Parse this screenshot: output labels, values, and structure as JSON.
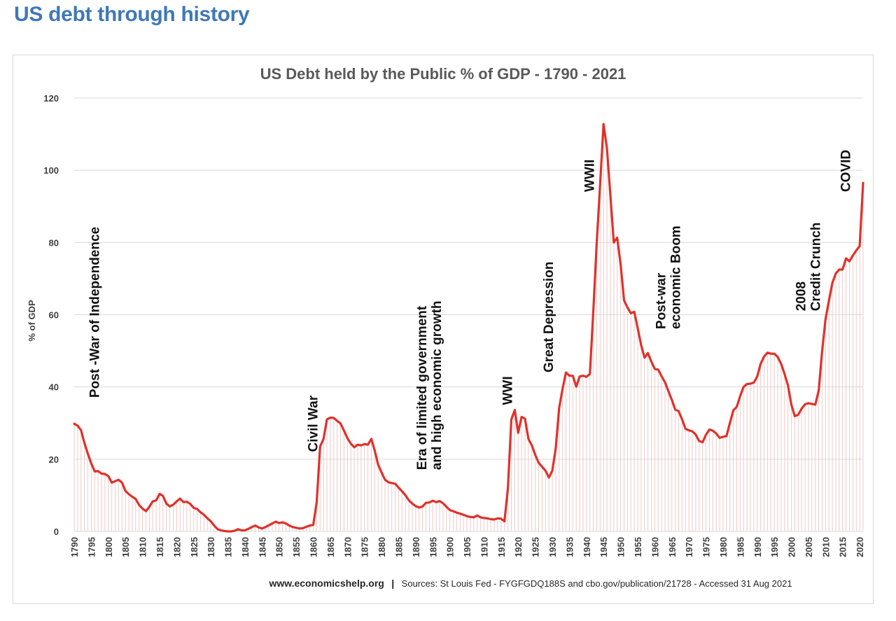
{
  "page": {
    "heading": "US debt through history"
  },
  "chart_data": {
    "type": "line",
    "title": "US Debt held by the Public % of GDP - 1790 - 2021",
    "ylabel": "% of GDP",
    "xlabel": "",
    "ylim": [
      0,
      120
    ],
    "yticks": [
      0,
      20,
      40,
      60,
      80,
      100,
      120
    ],
    "xlim": [
      1790,
      2021
    ],
    "xticks": [
      1790,
      1795,
      1800,
      1805,
      1810,
      1815,
      1820,
      1825,
      1830,
      1835,
      1840,
      1845,
      1850,
      1855,
      1860,
      1865,
      1870,
      1875,
      1880,
      1885,
      1890,
      1895,
      1900,
      1905,
      1910,
      1915,
      1920,
      1925,
      1930,
      1935,
      1940,
      1945,
      1950,
      1955,
      1960,
      1965,
      1970,
      1975,
      1980,
      1985,
      1990,
      1995,
      2000,
      2005,
      2010,
      2015,
      2020
    ],
    "grid": true,
    "series": [
      {
        "name": "Debt held by the public (% of GDP)",
        "color": "#e0312a",
        "points": [
          [
            1790,
            29.8
          ],
          [
            1791,
            29.3
          ],
          [
            1792,
            28.0
          ],
          [
            1793,
            24.5
          ],
          [
            1794,
            21.5
          ],
          [
            1795,
            18.8
          ],
          [
            1796,
            16.6
          ],
          [
            1797,
            16.7
          ],
          [
            1798,
            16.0
          ],
          [
            1799,
            15.9
          ],
          [
            1800,
            15.3
          ],
          [
            1801,
            13.5
          ],
          [
            1802,
            13.9
          ],
          [
            1803,
            14.3
          ],
          [
            1804,
            13.5
          ],
          [
            1805,
            11.2
          ],
          [
            1806,
            10.3
          ],
          [
            1807,
            9.6
          ],
          [
            1808,
            9.0
          ],
          [
            1809,
            7.3
          ],
          [
            1810,
            6.3
          ],
          [
            1811,
            5.6
          ],
          [
            1812,
            6.8
          ],
          [
            1813,
            8.3
          ],
          [
            1814,
            8.6
          ],
          [
            1815,
            10.4
          ],
          [
            1816,
            9.8
          ],
          [
            1817,
            7.7
          ],
          [
            1818,
            6.9
          ],
          [
            1819,
            7.4
          ],
          [
            1820,
            8.3
          ],
          [
            1821,
            9.1
          ],
          [
            1822,
            8.1
          ],
          [
            1823,
            8.2
          ],
          [
            1824,
            7.6
          ],
          [
            1825,
            6.5
          ],
          [
            1826,
            6.2
          ],
          [
            1827,
            5.3
          ],
          [
            1828,
            4.6
          ],
          [
            1829,
            3.6
          ],
          [
            1830,
            2.8
          ],
          [
            1831,
            1.6
          ],
          [
            1832,
            0.6
          ],
          [
            1833,
            0.3
          ],
          [
            1834,
            0.1
          ],
          [
            1835,
            0.0
          ],
          [
            1836,
            0.0
          ],
          [
            1837,
            0.2
          ],
          [
            1838,
            0.6
          ],
          [
            1839,
            0.3
          ],
          [
            1840,
            0.3
          ],
          [
            1841,
            0.7
          ],
          [
            1842,
            1.2
          ],
          [
            1843,
            1.6
          ],
          [
            1844,
            1.1
          ],
          [
            1845,
            0.8
          ],
          [
            1846,
            1.2
          ],
          [
            1847,
            1.7
          ],
          [
            1848,
            2.2
          ],
          [
            1849,
            2.7
          ],
          [
            1850,
            2.3
          ],
          [
            1851,
            2.5
          ],
          [
            1852,
            2.2
          ],
          [
            1853,
            1.6
          ],
          [
            1854,
            1.2
          ],
          [
            1855,
            1.0
          ],
          [
            1856,
            0.8
          ],
          [
            1857,
            0.9
          ],
          [
            1858,
            1.3
          ],
          [
            1859,
            1.6
          ],
          [
            1860,
            1.8
          ],
          [
            1861,
            8.0
          ],
          [
            1862,
            23.5
          ],
          [
            1863,
            25.6
          ],
          [
            1864,
            31.0
          ],
          [
            1865,
            31.5
          ],
          [
            1866,
            31.4
          ],
          [
            1867,
            30.6
          ],
          [
            1868,
            29.9
          ],
          [
            1869,
            27.9
          ],
          [
            1870,
            25.8
          ],
          [
            1871,
            24.3
          ],
          [
            1872,
            23.3
          ],
          [
            1873,
            24.0
          ],
          [
            1874,
            23.8
          ],
          [
            1875,
            24.2
          ],
          [
            1876,
            24.0
          ],
          [
            1877,
            25.6
          ],
          [
            1878,
            22.4
          ],
          [
            1879,
            18.5
          ],
          [
            1880,
            16.3
          ],
          [
            1881,
            14.3
          ],
          [
            1882,
            13.6
          ],
          [
            1883,
            13.4
          ],
          [
            1884,
            13.2
          ],
          [
            1885,
            12.1
          ],
          [
            1886,
            11.1
          ],
          [
            1887,
            10.0
          ],
          [
            1888,
            8.6
          ],
          [
            1889,
            7.7
          ],
          [
            1890,
            7.0
          ],
          [
            1891,
            6.6
          ],
          [
            1892,
            6.9
          ],
          [
            1893,
            7.9
          ],
          [
            1894,
            8.0
          ],
          [
            1895,
            8.5
          ],
          [
            1896,
            8.1
          ],
          [
            1897,
            8.4
          ],
          [
            1898,
            7.8
          ],
          [
            1899,
            6.8
          ],
          [
            1900,
            5.9
          ],
          [
            1901,
            5.6
          ],
          [
            1902,
            5.2
          ],
          [
            1903,
            4.9
          ],
          [
            1904,
            4.6
          ],
          [
            1905,
            4.2
          ],
          [
            1906,
            4.0
          ],
          [
            1907,
            3.9
          ],
          [
            1908,
            4.4
          ],
          [
            1909,
            3.9
          ],
          [
            1910,
            3.7
          ],
          [
            1911,
            3.6
          ],
          [
            1912,
            3.4
          ],
          [
            1913,
            3.3
          ],
          [
            1914,
            3.6
          ],
          [
            1915,
            3.5
          ],
          [
            1916,
            2.8
          ],
          [
            1917,
            12.0
          ],
          [
            1918,
            31.0
          ],
          [
            1919,
            33.6
          ],
          [
            1920,
            27.3
          ],
          [
            1921,
            31.7
          ],
          [
            1922,
            31.2
          ],
          [
            1923,
            25.6
          ],
          [
            1924,
            23.8
          ],
          [
            1925,
            21.2
          ],
          [
            1926,
            19.0
          ],
          [
            1927,
            17.9
          ],
          [
            1928,
            16.8
          ],
          [
            1929,
            14.9
          ],
          [
            1930,
            16.8
          ],
          [
            1931,
            23.0
          ],
          [
            1932,
            34.2
          ],
          [
            1933,
            39.5
          ],
          [
            1934,
            44.0
          ],
          [
            1935,
            43.1
          ],
          [
            1936,
            43.1
          ],
          [
            1937,
            40.1
          ],
          [
            1938,
            42.9
          ],
          [
            1939,
            43.1
          ],
          [
            1940,
            42.8
          ],
          [
            1941,
            43.6
          ],
          [
            1942,
            61.0
          ],
          [
            1943,
            80.0
          ],
          [
            1944,
            96.0
          ],
          [
            1945,
            112.8
          ],
          [
            1946,
            106.0
          ],
          [
            1947,
            93.0
          ],
          [
            1948,
            80.0
          ],
          [
            1949,
            81.3
          ],
          [
            1950,
            74.0
          ],
          [
            1951,
            64.0
          ],
          [
            1952,
            62.0
          ],
          [
            1953,
            60.4
          ],
          [
            1954,
            60.8
          ],
          [
            1955,
            56.3
          ],
          [
            1956,
            51.6
          ],
          [
            1957,
            48.1
          ],
          [
            1958,
            49.4
          ],
          [
            1959,
            47.0
          ],
          [
            1960,
            45.0
          ],
          [
            1961,
            44.8
          ],
          [
            1962,
            42.9
          ],
          [
            1963,
            41.3
          ],
          [
            1964,
            38.8
          ],
          [
            1965,
            36.4
          ],
          [
            1966,
            33.7
          ],
          [
            1967,
            33.3
          ],
          [
            1968,
            31.0
          ],
          [
            1969,
            28.4
          ],
          [
            1970,
            28.0
          ],
          [
            1971,
            27.7
          ],
          [
            1972,
            26.8
          ],
          [
            1973,
            25.0
          ],
          [
            1974,
            24.7
          ],
          [
            1975,
            26.8
          ],
          [
            1976,
            28.2
          ],
          [
            1977,
            27.9
          ],
          [
            1978,
            27.1
          ],
          [
            1979,
            25.9
          ],
          [
            1980,
            26.2
          ],
          [
            1981,
            26.4
          ],
          [
            1982,
            30.0
          ],
          [
            1983,
            33.5
          ],
          [
            1984,
            34.5
          ],
          [
            1985,
            37.5
          ],
          [
            1986,
            40.0
          ],
          [
            1987,
            40.8
          ],
          [
            1988,
            40.9
          ],
          [
            1989,
            41.2
          ],
          [
            1990,
            42.9
          ],
          [
            1991,
            46.4
          ],
          [
            1992,
            48.4
          ],
          [
            1993,
            49.5
          ],
          [
            1994,
            49.2
          ],
          [
            1995,
            49.2
          ],
          [
            1996,
            48.3
          ],
          [
            1997,
            46.4
          ],
          [
            1998,
            43.6
          ],
          [
            1999,
            40.4
          ],
          [
            2000,
            35.1
          ],
          [
            2001,
            31.9
          ],
          [
            2002,
            32.3
          ],
          [
            2003,
            34.0
          ],
          [
            2004,
            35.2
          ],
          [
            2005,
            35.5
          ],
          [
            2006,
            35.3
          ],
          [
            2007,
            35.1
          ],
          [
            2008,
            39.0
          ],
          [
            2009,
            50.0
          ],
          [
            2010,
            58.7
          ],
          [
            2011,
            63.9
          ],
          [
            2012,
            68.8
          ],
          [
            2013,
            71.4
          ],
          [
            2014,
            72.5
          ],
          [
            2015,
            72.5
          ],
          [
            2016,
            75.6
          ],
          [
            2017,
            74.8
          ],
          [
            2018,
            76.4
          ],
          [
            2019,
            77.8
          ],
          [
            2020,
            79.0
          ],
          [
            2021,
            96.5
          ]
        ]
      }
    ],
    "annotations": [
      {
        "text": "Post -War of Independence",
        "year": 1796,
        "value": 37,
        "lines": [
          "Post -War of Independence"
        ]
      },
      {
        "text": "Civil War",
        "year": 1860,
        "value": 22,
        "lines": [
          "Civil War"
        ]
      },
      {
        "text": "Era of limited government and high economic growth",
        "year": 1894,
        "value": 17,
        "lines": [
          "Era of limited government",
          "and high economic growth"
        ]
      },
      {
        "text": "WWI",
        "year": 1917,
        "value": 35,
        "lines": [
          "WWI"
        ]
      },
      {
        "text": "Great Depression",
        "year": 1929,
        "value": 44,
        "lines": [
          "Great Depression"
        ]
      },
      {
        "text": "WWII",
        "year": 1941,
        "value": 94,
        "lines": [
          "WWII"
        ]
      },
      {
        "text": "Post-war economic Boom",
        "year": 1964,
        "value": 56,
        "lines": [
          "Post-war",
          "economic Boom"
        ]
      },
      {
        "text": "2008 Credit Crunch",
        "year": 2005,
        "value": 61,
        "lines": [
          "2008",
          "Credit Crunch"
        ]
      },
      {
        "text": "COVID",
        "year": 2016,
        "value": 94,
        "lines": [
          "COVID"
        ]
      }
    ]
  },
  "footer": {
    "site": "www.economicshelp.org",
    "separator": "|",
    "sources": "Sources: St Louis Fed - FYGFGDQ188S and cbo.gov/publication/21728 - Accessed 31 Aug 2021"
  }
}
